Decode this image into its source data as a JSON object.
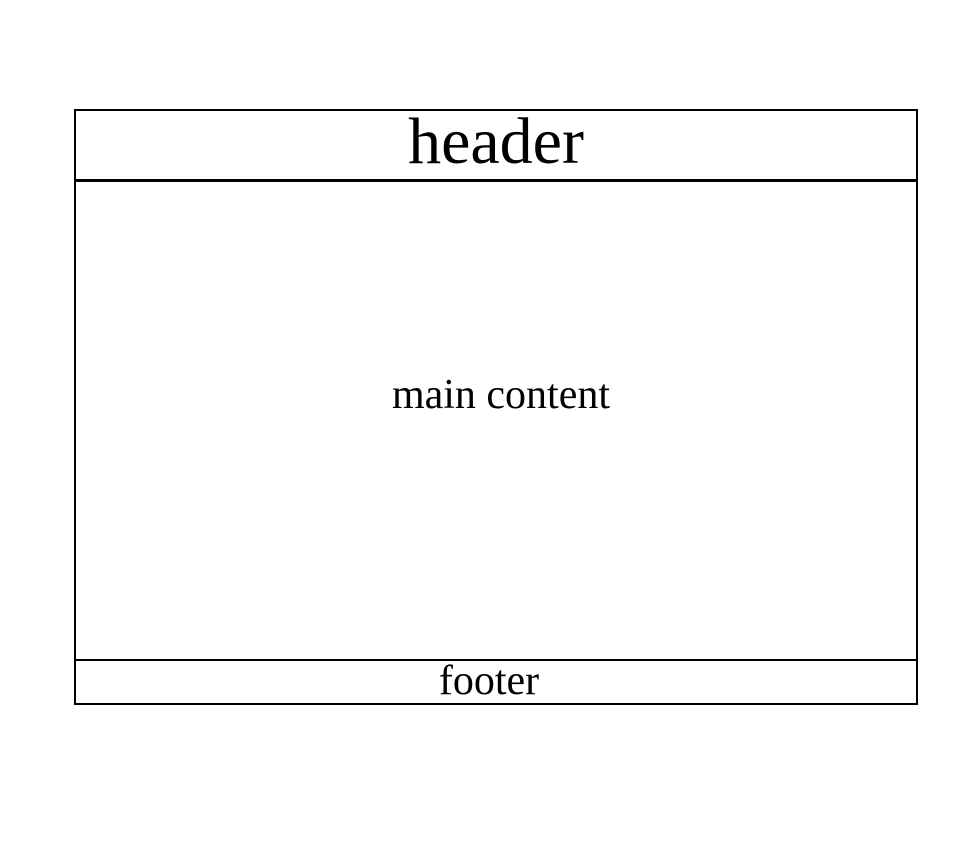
{
  "diagram": {
    "header": {
      "label": "header"
    },
    "main": {
      "label": "main content"
    },
    "footer": {
      "label": "footer"
    }
  },
  "colors": {
    "background": "#ffffff",
    "border": "#000000",
    "text": "#000000"
  }
}
